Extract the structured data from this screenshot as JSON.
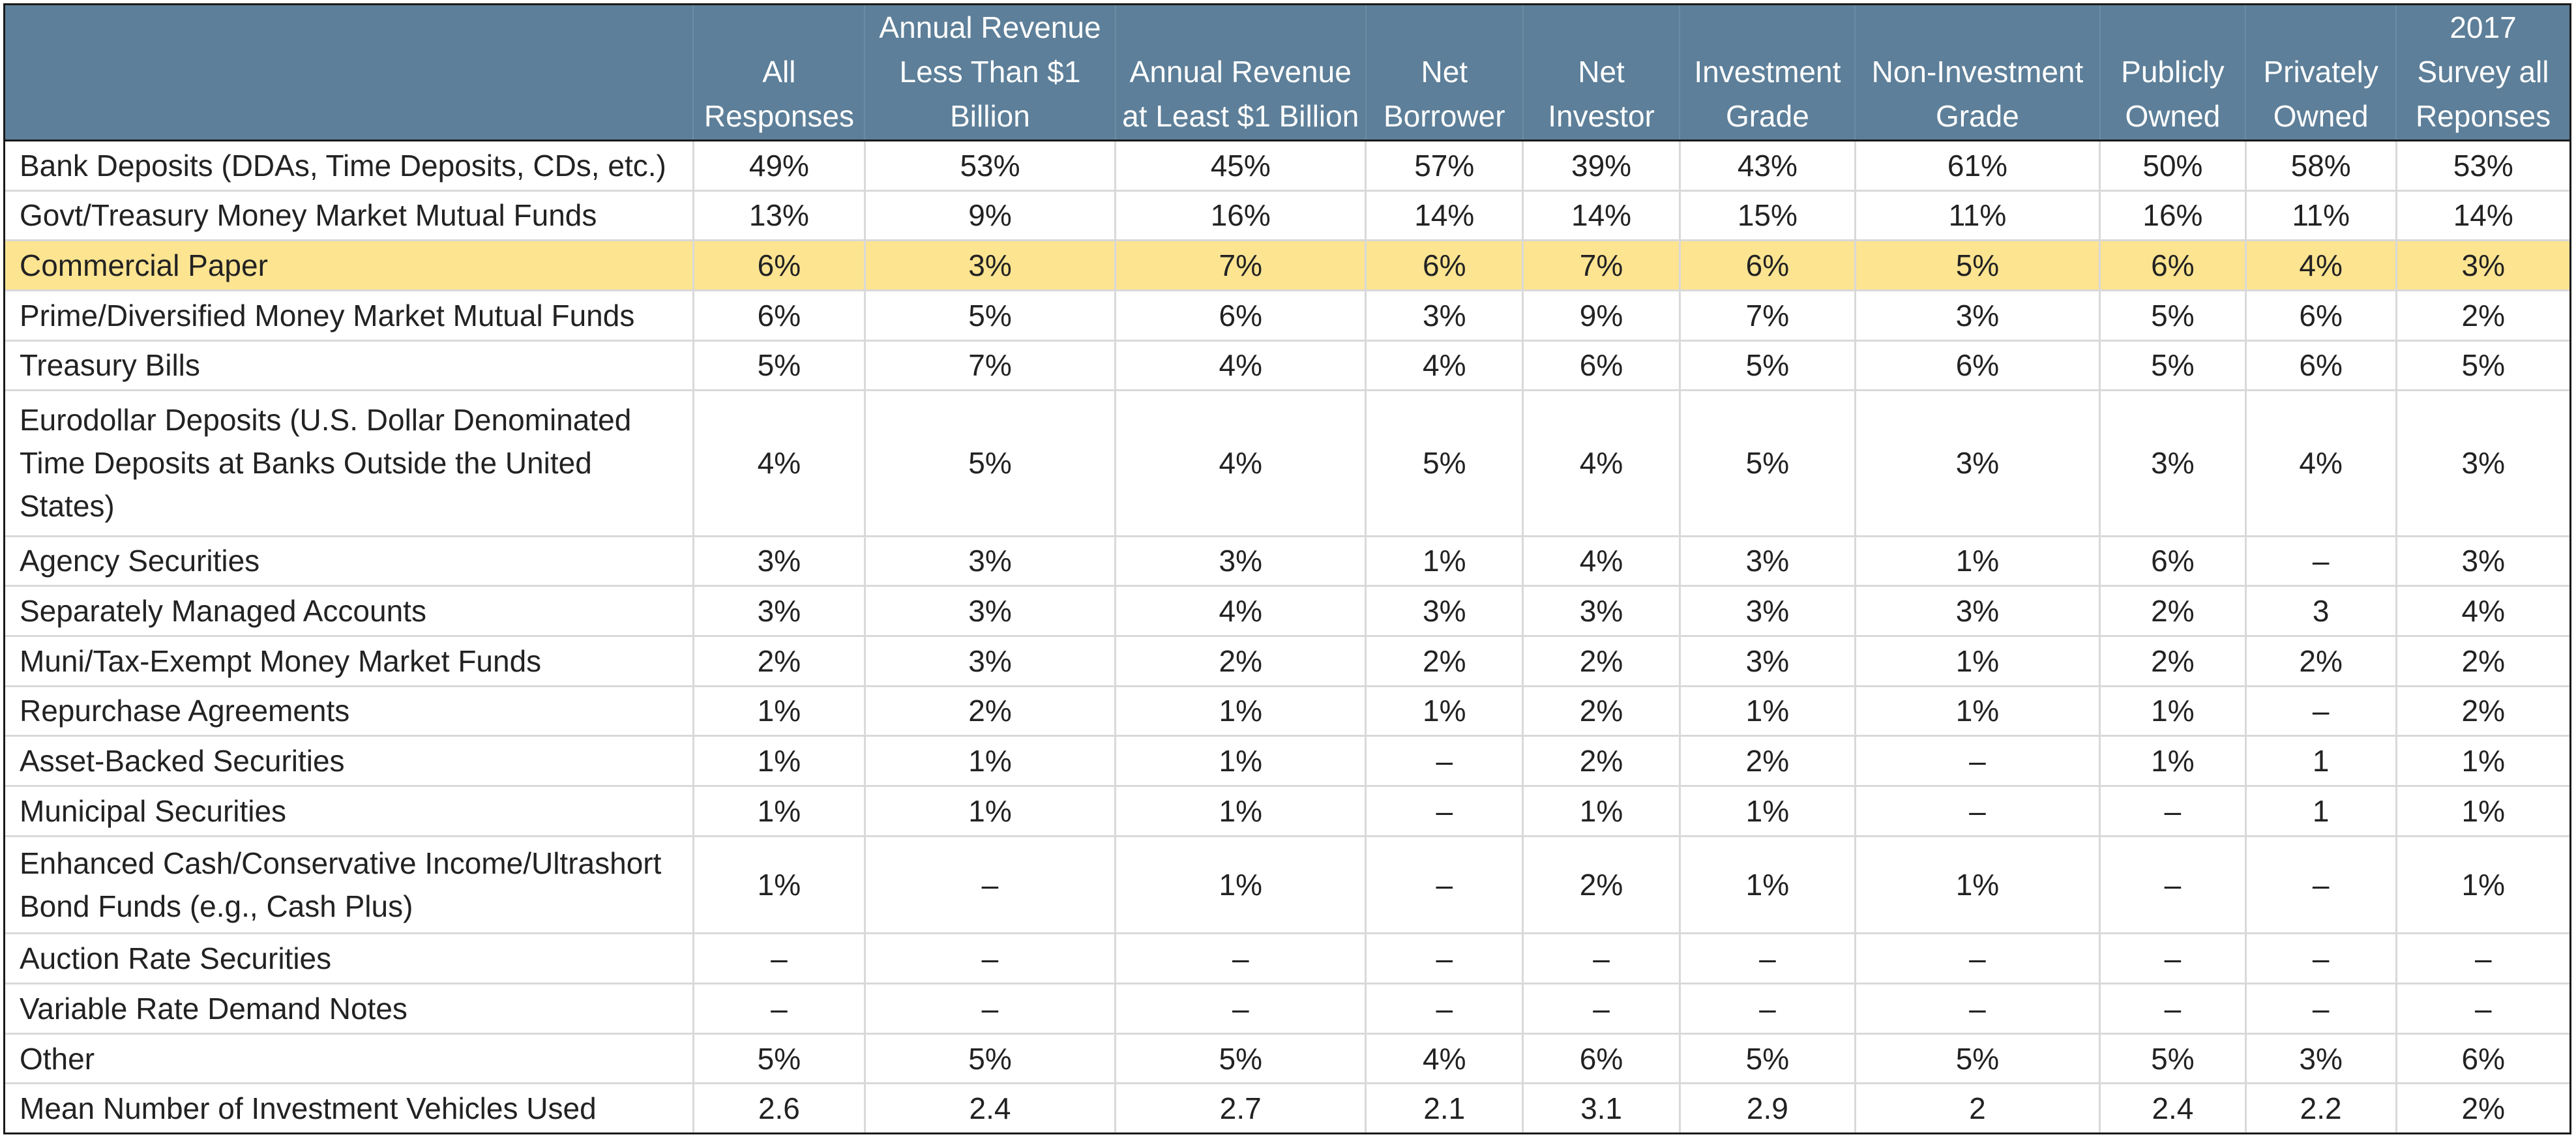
{
  "chart_data": {
    "type": "table",
    "columns": [
      "",
      "All Responses",
      "Annual Revenue Less Than $1 Billion",
      "Annual Revenue at Least $1 Billion",
      "Net Borrower",
      "Net Investor",
      "Investment Grade",
      "Non-Investment Grade",
      "Publicly Owned",
      "Privately Owned",
      "2017 Survey all Reponses"
    ],
    "highlight_row": "Commercial Paper",
    "colors": {
      "header_bg": "#5d7f99",
      "header_text": "#ffffff",
      "highlight_bg": "#fde491",
      "grid": "#d9d9d9",
      "frame": "#1a1a1a"
    },
    "rows": [
      [
        "Bank Deposits (DDAs, Time Deposits, CDs, etc.)",
        "49%",
        "53%",
        "45%",
        "57%",
        "39%",
        "43%",
        "61%",
        "50%",
        "58%",
        "53%"
      ],
      [
        "Govt/Treasury Money Market Mutual Funds",
        "13%",
        "9%",
        "16%",
        "14%",
        "14%",
        "15%",
        "11%",
        "16%",
        "11%",
        "14%"
      ],
      [
        "Commercial Paper",
        "6%",
        "3%",
        "7%",
        "6%",
        "7%",
        "6%",
        "5%",
        "6%",
        "4%",
        "3%"
      ],
      [
        "Prime/Diversified Money Market Mutual Funds",
        "6%",
        "5%",
        "6%",
        "3%",
        "9%",
        "7%",
        "3%",
        "5%",
        "6%",
        "2%"
      ],
      [
        "Treasury Bills",
        "5%",
        "7%",
        "4%",
        "4%",
        "6%",
        "5%",
        "6%",
        "5%",
        "6%",
        "5%"
      ],
      [
        "Eurodollar Deposits (U.S. Dollar Denominated Time Deposits at Banks Outside the United States)",
        "4%",
        "5%",
        "4%",
        "5%",
        "4%",
        "5%",
        "3%",
        "3%",
        "4%",
        "3%"
      ],
      [
        "Agency Securities",
        "3%",
        "3%",
        "3%",
        "1%",
        "4%",
        "3%",
        "1%",
        "6%",
        "–",
        "3%"
      ],
      [
        "Separately Managed Accounts",
        "3%",
        "3%",
        "4%",
        "3%",
        "3%",
        "3%",
        "3%",
        "2%",
        "3",
        "4%"
      ],
      [
        "Muni/Tax-Exempt Money Market Funds",
        "2%",
        "3%",
        "2%",
        "2%",
        "2%",
        "3%",
        "1%",
        "2%",
        "2%",
        "2%"
      ],
      [
        "Repurchase Agreements",
        "1%",
        "2%",
        "1%",
        "1%",
        "2%",
        "1%",
        "1%",
        "1%",
        "–",
        "2%"
      ],
      [
        "Asset-Backed Securities",
        "1%",
        "1%",
        "1%",
        "–",
        "2%",
        "2%",
        "–",
        "1%",
        "1",
        "1%"
      ],
      [
        "Municipal Securities",
        "1%",
        "1%",
        "1%",
        "–",
        "1%",
        "1%",
        "–",
        "–",
        "1",
        "1%"
      ],
      [
        "Enhanced Cash/Conservative Income/Ultrashort Bond Funds (e.g., Cash Plus)",
        "1%",
        "–",
        "1%",
        "–",
        "2%",
        "1%",
        "1%",
        "–",
        "–",
        "1%"
      ],
      [
        "Auction Rate Securities",
        "–",
        "–",
        "–",
        "–",
        "–",
        "–",
        "–",
        "–",
        "–",
        "–"
      ],
      [
        "Variable Rate Demand Notes",
        "–",
        "–",
        "–",
        "–",
        "–",
        "–",
        "–",
        "–",
        "–",
        "–"
      ],
      [
        "Other",
        "5%",
        "5%",
        "5%",
        "4%",
        "6%",
        "5%",
        "5%",
        "5%",
        "3%",
        "6%"
      ],
      [
        "Mean Number of Investment Vehicles Used",
        "2.6",
        "2.4",
        "2.7",
        "2.1",
        "3.1",
        "2.9",
        "2",
        "2.4",
        "2.2",
        "2%"
      ]
    ]
  }
}
